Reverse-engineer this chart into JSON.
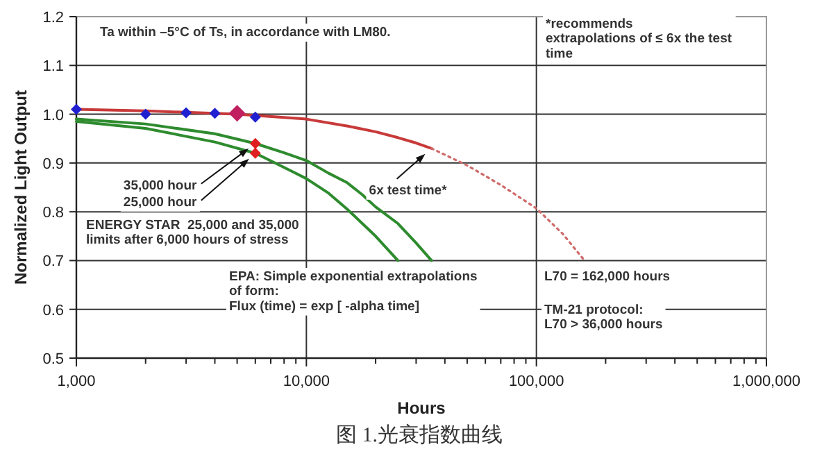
{
  "chart_data": {
    "type": "line",
    "xlabel": "Hours",
    "ylabel": "Normalized Light Output",
    "log": "x",
    "grid": true,
    "xlim": [
      1000,
      1000000
    ],
    "ylim": [
      0.5,
      1.2
    ],
    "xticks": [
      {
        "value": 1000,
        "label": "1,000"
      },
      {
        "value": 2000,
        "label": null
      },
      {
        "value": 3000,
        "label": null
      },
      {
        "value": 4000,
        "label": null
      },
      {
        "value": 5000,
        "label": null
      },
      {
        "value": 6000,
        "label": null
      },
      {
        "value": 7000,
        "label": null
      },
      {
        "value": 8000,
        "label": null
      },
      {
        "value": 9000,
        "label": null
      },
      {
        "value": 10000,
        "label": "10,000"
      },
      {
        "value": 20000,
        "label": null
      },
      {
        "value": 30000,
        "label": null
      },
      {
        "value": 40000,
        "label": null
      },
      {
        "value": 50000,
        "label": null
      },
      {
        "value": 60000,
        "label": null
      },
      {
        "value": 70000,
        "label": null
      },
      {
        "value": 80000,
        "label": null
      },
      {
        "value": 90000,
        "label": null
      },
      {
        "value": 100000,
        "label": "100,000"
      },
      {
        "value": 200000,
        "label": null
      },
      {
        "value": 300000,
        "label": null
      },
      {
        "value": 400000,
        "label": null
      },
      {
        "value": 500000,
        "label": null
      },
      {
        "value": 600000,
        "label": null
      },
      {
        "value": 700000,
        "label": null
      },
      {
        "value": 800000,
        "label": null
      },
      {
        "value": 900000,
        "label": null
      },
      {
        "value": 1000000,
        "label": "1,000,000"
      }
    ],
    "yticks": [
      0.5,
      0.6,
      0.7,
      0.8,
      0.9,
      {
        "value": 1,
        "label": "1.0"
      },
      1.1,
      1.2
    ],
    "series": [
      {
        "color": "#c83a3a",
        "line_style": "solid",
        "marker": "none",
        "x": [
          1000,
          2000,
          5000,
          10000,
          15000,
          20000,
          25000,
          30000,
          35000
        ],
        "values": [
          1.01,
          1.007,
          1.0,
          0.99,
          0.976,
          0.964,
          0.952,
          0.941,
          0.93
        ]
      },
      {
        "color": "#d06a6a",
        "line_style": "dotted",
        "marker": "none",
        "x": [
          35000,
          50000,
          70000,
          100000,
          130000,
          162000
        ],
        "values": [
          0.93,
          0.895,
          0.855,
          0.807,
          0.755,
          0.7
        ]
      },
      {
        "color": "#2e8b2e",
        "line_style": "solid",
        "marker": "none",
        "x": [
          1000,
          2000,
          4000,
          6000,
          8000,
          10000,
          12500,
          15000,
          17500,
          20000,
          25000,
          30000,
          35000
        ],
        "values": [
          0.99,
          0.98,
          0.96,
          0.94,
          0.921,
          0.905,
          0.879,
          0.86,
          0.835,
          0.81,
          0.776,
          0.736,
          0.7
        ]
      },
      {
        "color": "#2e8b2e",
        "line_style": "solid",
        "marker": "none",
        "x": [
          1000,
          2000,
          4000,
          6000,
          8000,
          10000,
          12500,
          15000,
          17500,
          20000,
          25000
        ],
        "values": [
          0.985,
          0.971,
          0.943,
          0.92,
          0.891,
          0.868,
          0.838,
          0.806,
          0.776,
          0.75,
          0.7
        ]
      },
      {
        "type": "scatter",
        "color": "#2020d0",
        "marker": "diamond",
        "x": [
          1000,
          2000,
          3000,
          4000,
          6000
        ],
        "values": [
          1.01,
          1.0,
          1.003,
          1.002,
          0.994
        ]
      },
      {
        "type": "scatter",
        "color": "#c02060",
        "marker": "diamond",
        "x": [
          5000
        ],
        "values": [
          1.002
        ]
      },
      {
        "type": "scatter",
        "color": "#e02020",
        "marker": "diamond",
        "x": [
          6000,
          6000
        ],
        "values": [
          0.94,
          0.92
        ]
      }
    ],
    "annotations": [
      "Ta within –5°C of Ts, in accordance with LM80.",
      "*recommends\nextrapolations of ≤ 6x the test\ntime",
      "35,000 hour",
      "25,000 hour",
      "ENERGY STAR  25,000 and 35,000\nlimits after 6,000 hours of stress",
      {
        "text": "6x test time*",
        "x": 35000,
        "y": 0.93
      },
      "EPA: Simple exponential extrapolations\nof form:\nFlux (time) = exp [ -alpha time]",
      "L70 = 162,000 hours",
      "TM-21 protocol:\nL70 > 36,000 hours",
      "图 1.光衰指数曲线"
    ]
  }
}
